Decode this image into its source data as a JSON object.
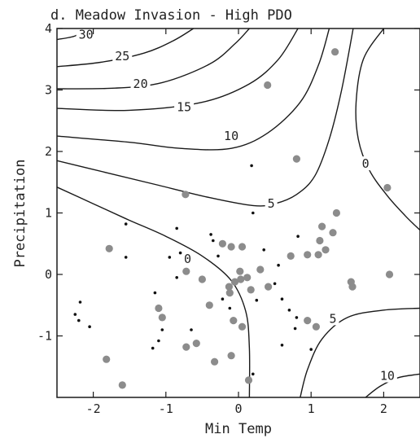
{
  "chart_data": {
    "type": "scatter",
    "title": "d. Meadow Invasion - High PDO",
    "xlabel": "Min Temp",
    "ylabel": "Precipitation",
    "xlim": [
      -2.5,
      2.5
    ],
    "ylim": [
      -2,
      4
    ],
    "xticks": [
      "-2",
      "-1",
      "0",
      "1",
      "2"
    ],
    "yticks": [
      "-1",
      "0",
      "1",
      "2",
      "3",
      "4"
    ],
    "grid": false,
    "colors": {
      "large_points": "#8c8c8c",
      "small_points": "#111111",
      "lines": "#1a1a1a"
    },
    "contour_labels": [
      {
        "text": "30",
        "x": -2.1,
        "y": 3.9
      },
      {
        "text": "25",
        "x": -1.6,
        "y": 3.55
      },
      {
        "text": "20",
        "x": -1.35,
        "y": 3.1
      },
      {
        "text": "15",
        "x": -0.75,
        "y": 2.72
      },
      {
        "text": "10",
        "x": -0.1,
        "y": 2.25
      },
      {
        "text": "5",
        "x": 0.45,
        "y": 1.15
      },
      {
        "text": "0",
        "x": -0.7,
        "y": 0.25
      },
      {
        "text": "0",
        "x": 1.75,
        "y": 1.8
      },
      {
        "text": "5",
        "x": 1.3,
        "y": -0.72
      },
      {
        "text": "10",
        "x": 2.05,
        "y": -1.65
      }
    ],
    "contour_lines": [
      {
        "level": 30,
        "points": [
          [
            -2.5,
            3.82
          ],
          [
            -2.25,
            3.88
          ],
          [
            -2.12,
            4.0
          ]
        ]
      },
      {
        "level": 25,
        "points": [
          [
            -2.5,
            3.38
          ],
          [
            -1.9,
            3.45
          ],
          [
            -1.3,
            3.6
          ],
          [
            -0.9,
            3.8
          ],
          [
            -0.62,
            4.0
          ]
        ]
      },
      {
        "level": 20,
        "points": [
          [
            -2.5,
            3.02
          ],
          [
            -1.7,
            3.03
          ],
          [
            -1.05,
            3.12
          ],
          [
            -0.4,
            3.42
          ],
          [
            -0.05,
            3.75
          ],
          [
            0.15,
            4.0
          ]
        ]
      },
      {
        "level": 15,
        "points": [
          [
            -2.5,
            2.7
          ],
          [
            -1.5,
            2.67
          ],
          [
            -0.5,
            2.8
          ],
          [
            0.15,
            3.1
          ],
          [
            0.55,
            3.5
          ],
          [
            0.82,
            4.0
          ]
        ]
      },
      {
        "level": 10,
        "points": [
          [
            -2.5,
            2.25
          ],
          [
            -1.5,
            2.15
          ],
          [
            -0.8,
            2.05
          ],
          [
            -0.1,
            2.05
          ],
          [
            0.4,
            2.3
          ],
          [
            0.85,
            2.8
          ],
          [
            1.1,
            3.4
          ],
          [
            1.25,
            4.0
          ]
        ]
      },
      {
        "level": 5,
        "points": [
          [
            -2.5,
            1.85
          ],
          [
            -1.8,
            1.65
          ],
          [
            -1.1,
            1.45
          ],
          [
            -0.4,
            1.25
          ],
          [
            0.2,
            1.12
          ],
          [
            0.5,
            1.15
          ],
          [
            0.8,
            1.3
          ],
          [
            1.05,
            1.6
          ],
          [
            1.25,
            2.2
          ],
          [
            1.42,
            3.0
          ],
          [
            1.58,
            4.0
          ]
        ]
      },
      {
        "level": 0,
        "points": [
          [
            -2.5,
            1.42
          ],
          [
            -2.0,
            1.15
          ],
          [
            -1.5,
            0.88
          ],
          [
            -1.0,
            0.62
          ],
          [
            -0.5,
            0.3
          ],
          [
            -0.1,
            -0.1
          ],
          [
            0.1,
            -0.6
          ],
          [
            0.15,
            -1.2
          ],
          [
            0.15,
            -2.0
          ]
        ]
      },
      {
        "level": 0,
        "points": [
          [
            2.0,
            4.0
          ],
          [
            1.72,
            3.5
          ],
          [
            1.62,
            2.8
          ],
          [
            1.65,
            2.2
          ],
          [
            1.8,
            1.7
          ],
          [
            2.05,
            1.28
          ],
          [
            2.3,
            0.95
          ],
          [
            2.5,
            0.72
          ]
        ]
      },
      {
        "level": 5,
        "points": [
          [
            0.85,
            -2.0
          ],
          [
            0.95,
            -1.55
          ],
          [
            1.15,
            -1.05
          ],
          [
            1.5,
            -0.7
          ],
          [
            2.0,
            -0.58
          ],
          [
            2.5,
            -0.55
          ]
        ]
      },
      {
        "level": 10,
        "points": [
          [
            1.75,
            -2.0
          ],
          [
            1.95,
            -1.82
          ],
          [
            2.2,
            -1.68
          ],
          [
            2.5,
            -1.62
          ]
        ]
      }
    ],
    "series": [
      {
        "marker": "large-gray",
        "points": [
          [
            1.33,
            3.62
          ],
          [
            0.4,
            3.08
          ],
          [
            0.8,
            1.88
          ],
          [
            2.05,
            1.41
          ],
          [
            -0.73,
            1.3
          ],
          [
            -1.78,
            0.42
          ],
          [
            -0.72,
            0.05
          ],
          [
            -0.22,
            0.5
          ],
          [
            -0.1,
            0.45
          ],
          [
            0.05,
            0.45
          ],
          [
            0.72,
            0.3
          ],
          [
            0.95,
            0.32
          ],
          [
            1.1,
            0.32
          ],
          [
            1.15,
            0.78
          ],
          [
            1.3,
            0.68
          ],
          [
            1.12,
            0.55
          ],
          [
            1.2,
            0.4
          ],
          [
            1.35,
            1.0
          ],
          [
            1.55,
            -0.12
          ],
          [
            1.57,
            -0.2
          ],
          [
            2.08,
            0.0
          ],
          [
            0.3,
            0.08
          ],
          [
            0.02,
            0.05
          ],
          [
            0.03,
            -0.08
          ],
          [
            -0.05,
            -0.12
          ],
          [
            0.12,
            -0.05
          ],
          [
            -0.13,
            -0.2
          ],
          [
            -0.12,
            -0.3
          ],
          [
            0.17,
            -0.25
          ],
          [
            0.41,
            -0.2
          ],
          [
            -0.5,
            -0.08
          ],
          [
            -1.1,
            -0.55
          ],
          [
            -1.05,
            -0.7
          ],
          [
            -0.4,
            -0.5
          ],
          [
            -0.07,
            -0.75
          ],
          [
            0.05,
            -0.85
          ],
          [
            -0.72,
            -1.18
          ],
          [
            -0.58,
            -1.12
          ],
          [
            -0.33,
            -1.42
          ],
          [
            -0.1,
            -1.32
          ],
          [
            0.95,
            -0.75
          ],
          [
            1.07,
            -0.85
          ],
          [
            -1.82,
            -1.38
          ],
          [
            -1.6,
            -1.8
          ],
          [
            0.14,
            -1.72
          ]
        ]
      },
      {
        "marker": "small-black",
        "points": [
          [
            0.18,
            1.77
          ],
          [
            0.2,
            1.0
          ],
          [
            -1.55,
            0.82
          ],
          [
            -0.85,
            0.75
          ],
          [
            -0.38,
            0.65
          ],
          [
            -1.55,
            0.28
          ],
          [
            -0.95,
            0.28
          ],
          [
            -0.8,
            0.35
          ],
          [
            -0.35,
            0.55
          ],
          [
            -0.28,
            0.3
          ],
          [
            0.35,
            0.4
          ],
          [
            0.82,
            0.62
          ],
          [
            0.55,
            0.15
          ],
          [
            0.5,
            -0.15
          ],
          [
            0.6,
            -0.4
          ],
          [
            0.78,
            -0.88
          ],
          [
            -0.85,
            -0.05
          ],
          [
            -0.22,
            -0.4
          ],
          [
            -0.12,
            -0.55
          ],
          [
            0.25,
            -0.42
          ],
          [
            -2.25,
            -0.65
          ],
          [
            -2.18,
            -0.45
          ],
          [
            -2.2,
            -0.75
          ],
          [
            -2.05,
            -0.85
          ],
          [
            -1.15,
            -0.3
          ],
          [
            -1.05,
            -0.9
          ],
          [
            -1.1,
            -1.08
          ],
          [
            -1.18,
            -1.2
          ],
          [
            -0.65,
            -0.9
          ],
          [
            0.7,
            -0.58
          ],
          [
            1.0,
            -1.22
          ],
          [
            0.2,
            -1.62
          ],
          [
            0.6,
            -1.15
          ],
          [
            0.8,
            -0.7
          ]
        ]
      }
    ]
  }
}
